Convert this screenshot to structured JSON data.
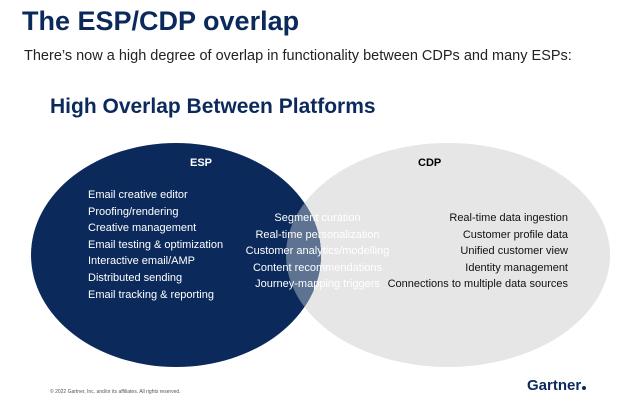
{
  "title": "The ESP/CDP overlap",
  "subtitle": "There’s now a high degree of overlap in functionality between CDPs and many ESPs:",
  "diagram": {
    "heading": "High Overlap Between Platforms",
    "esp": {
      "label": "ESP",
      "color": "#0b2a5b",
      "items": [
        "Email creative editor",
        "Proofing/rendering",
        "Creative management",
        "Email testing & optimization",
        "Interactive email/AMP",
        "Distributed sending",
        "Email tracking & reporting"
      ]
    },
    "overlap": {
      "color": "#5e7391",
      "items": [
        "Segment curation",
        "Real-time personalization",
        "Customer analytics/modelling",
        "Content recommendations",
        "Journey-mapping triggers"
      ]
    },
    "cdp": {
      "label": "CDP",
      "color": "#e6e6e6",
      "items": [
        "Real-time data ingestion",
        "Customer profile data",
        "Unified customer view",
        "Identity management",
        "Connections to multiple data sources"
      ]
    }
  },
  "footer": {
    "copyright": "© 2022 Gartner, Inc. and/or its affiliates. All rights reserved.",
    "brand": "Gartner"
  }
}
